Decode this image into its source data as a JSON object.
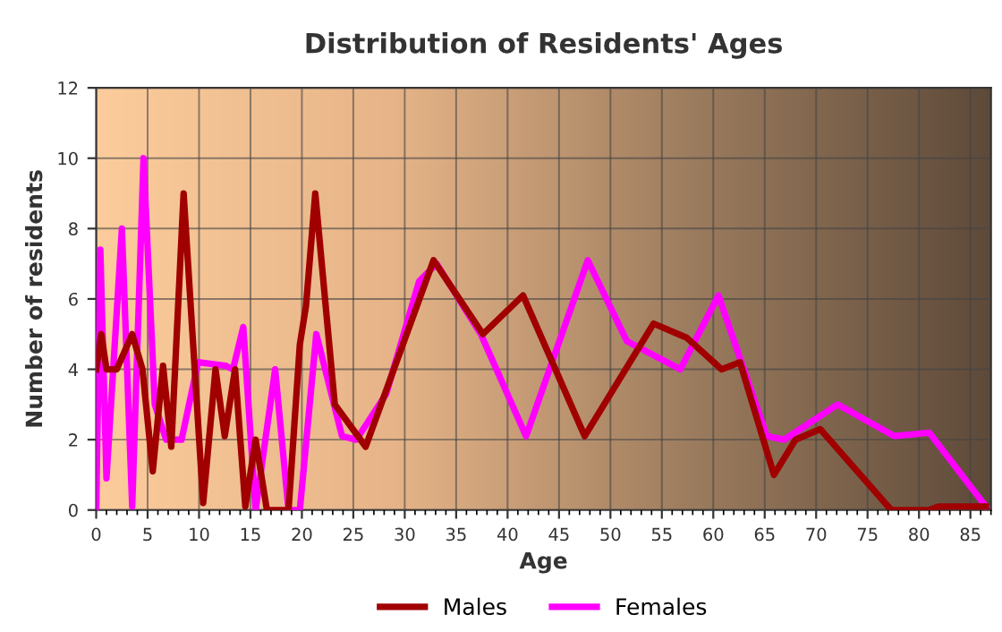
{
  "chart_data": {
    "type": "line",
    "title": "Distribution of Residents' Ages",
    "xlabel": "Age",
    "ylabel": "Number of residents",
    "xlim": [
      0,
      87
    ],
    "ylim": [
      0,
      12
    ],
    "xticks": [
      0,
      5,
      10,
      15,
      20,
      25,
      30,
      35,
      40,
      45,
      50,
      55,
      60,
      65,
      70,
      75,
      80,
      85
    ],
    "yticks": [
      0,
      2,
      4,
      6,
      8,
      10,
      12
    ],
    "grid": true,
    "legend": "bottom",
    "line_style": "solid",
    "marker": "none",
    "series": [
      {
        "name": "Males",
        "color": "#a00000",
        "x": [
          0,
          0.5,
          1,
          2,
          3.5,
          4.5,
          5.5,
          6.5,
          7.3,
          8.5,
          10.4,
          11.6,
          12.5,
          13.5,
          14.5,
          15.5,
          16.6,
          18.7,
          19.8,
          20.4,
          21.3,
          23.2,
          26.2,
          32.8,
          37.6,
          41.5,
          47.5,
          54.2,
          57.4,
          60.8,
          62.6,
          65.9,
          68,
          70.4,
          77.3,
          81,
          81.9,
          86.5
        ],
        "values": [
          4,
          5,
          4,
          4,
          5,
          4,
          1.1,
          4.1,
          1.8,
          9,
          0.2,
          4,
          2.1,
          4,
          0.1,
          2,
          0,
          0,
          4.7,
          5.8,
          9,
          3,
          1.8,
          7.1,
          5,
          6.1,
          2.1,
          5.3,
          4.9,
          4,
          4.2,
          1,
          2,
          2.3,
          0,
          0,
          0.1,
          0.1
        ]
      },
      {
        "name": "Females",
        "color": "#ff00ff",
        "x": [
          0,
          0.4,
          1,
          2.5,
          3.5,
          4.6,
          5.7,
          6.8,
          8.3,
          9.9,
          12.6,
          13.3,
          14.3,
          15.5,
          17.4,
          18.7,
          19.8,
          21.4,
          23.9,
          25.3,
          28.2,
          31.4,
          33.1,
          37.4,
          41.8,
          47.8,
          51.6,
          56.8,
          60.5,
          65.2,
          66.9,
          72.1,
          77.6,
          81,
          86.5
        ],
        "values": [
          0,
          7.4,
          0.9,
          8,
          0.1,
          10,
          3,
          2,
          2,
          4.2,
          4.1,
          4,
          5.2,
          0,
          4,
          0,
          0,
          5,
          2.1,
          2,
          3.3,
          6.5,
          7,
          5,
          2.1,
          7.1,
          4.8,
          4,
          6.1,
          2.1,
          2,
          3,
          2.1,
          2.2,
          0.1
        ]
      }
    ]
  }
}
